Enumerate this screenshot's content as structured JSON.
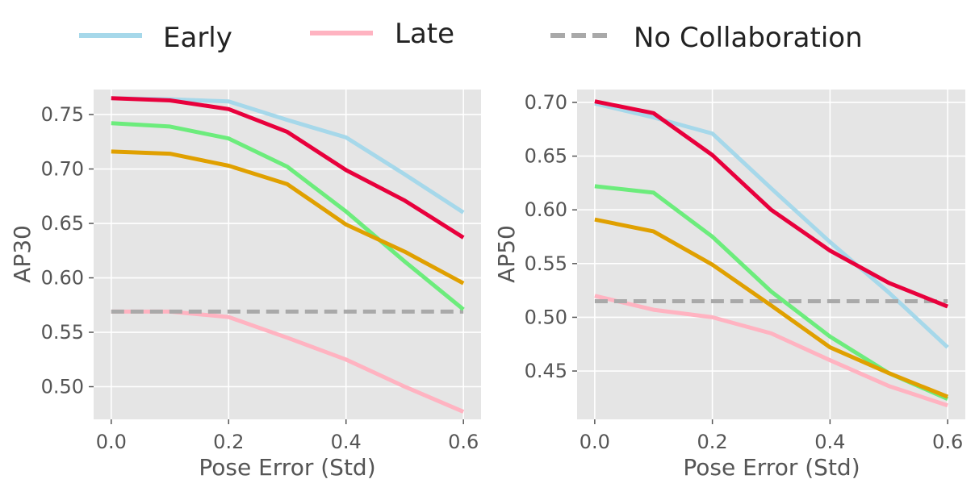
{
  "legend": {
    "items": [
      {
        "label": "Early",
        "color": "#a6d8ea",
        "style": "solid"
      },
      {
        "label": "Late",
        "color": "#ffb3c1",
        "style": "solid"
      },
      {
        "label": "No Collaboration",
        "color": "#a9a9a9",
        "style": "dashed"
      }
    ],
    "placement": "top"
  },
  "chart_data": [
    {
      "type": "line",
      "xlabel": "Pose Error (Std)",
      "ylabel": "AP30",
      "xlim": [
        -0.03,
        0.63
      ],
      "ylim": [
        0.47,
        0.773
      ],
      "xticks": [
        "0.0",
        "0.2",
        "0.4",
        "0.6"
      ],
      "xtick_values": [
        0.0,
        0.2,
        0.4,
        0.6
      ],
      "yticks": [
        "0.50",
        "0.55",
        "0.60",
        "0.65",
        "0.70",
        "0.75"
      ],
      "ytick_values": [
        0.5,
        0.55,
        0.6,
        0.65,
        0.7,
        0.75
      ],
      "grid": true,
      "x": [
        0.0,
        0.1,
        0.2,
        0.3,
        0.4,
        0.5,
        0.6
      ],
      "series": [
        {
          "name": "Early",
          "color": "#a6d8ea",
          "dashed": false,
          "values": [
            0.765,
            0.764,
            0.762,
            0.745,
            0.729,
            0.695,
            0.66
          ]
        },
        {
          "name": "Late",
          "color": "#ffb3c1",
          "dashed": false,
          "values": [
            0.569,
            0.569,
            0.564,
            0.545,
            0.525,
            0.5,
            0.477
          ]
        },
        {
          "name": "No Collaboration",
          "color": "#a9a9a9",
          "dashed": true,
          "values": [
            0.569,
            0.569,
            0.569,
            0.569,
            0.569,
            0.569,
            0.569
          ]
        },
        {
          "name": "",
          "color": "#6cec7c",
          "dashed": false,
          "values": [
            0.742,
            0.739,
            0.728,
            0.702,
            0.661,
            0.615,
            0.571
          ]
        },
        {
          "name": "",
          "color": "#e0a000",
          "dashed": false,
          "values": [
            0.716,
            0.714,
            0.703,
            0.686,
            0.649,
            0.624,
            0.595
          ]
        },
        {
          "name": "",
          "color": "#e8003c",
          "dashed": false,
          "values": [
            0.765,
            0.763,
            0.755,
            0.734,
            0.699,
            0.671,
            0.637
          ]
        }
      ]
    },
    {
      "type": "line",
      "xlabel": "Pose Error (Std)",
      "ylabel": "AP50",
      "xlim": [
        -0.03,
        0.63
      ],
      "ylim": [
        0.405,
        0.712
      ],
      "xticks": [
        "0.0",
        "0.2",
        "0.4",
        "0.6"
      ],
      "xtick_values": [
        0.0,
        0.2,
        0.4,
        0.6
      ],
      "yticks": [
        "0.45",
        "0.50",
        "0.55",
        "0.60",
        "0.65",
        "0.70"
      ],
      "ytick_values": [
        0.45,
        0.5,
        0.55,
        0.6,
        0.65,
        0.7
      ],
      "grid": true,
      "x": [
        0.0,
        0.1,
        0.2,
        0.3,
        0.4,
        0.5,
        0.6
      ],
      "series": [
        {
          "name": "Early",
          "color": "#a6d8ea",
          "dashed": false,
          "values": [
            0.699,
            0.686,
            0.671,
            0.62,
            0.57,
            0.523,
            0.472
          ]
        },
        {
          "name": "Late",
          "color": "#ffb3c1",
          "dashed": false,
          "values": [
            0.52,
            0.507,
            0.5,
            0.485,
            0.46,
            0.436,
            0.418
          ]
        },
        {
          "name": "No Collaboration",
          "color": "#a9a9a9",
          "dashed": true,
          "values": [
            0.515,
            0.515,
            0.515,
            0.515,
            0.515,
            0.515,
            0.515
          ]
        },
        {
          "name": "",
          "color": "#6cec7c",
          "dashed": false,
          "values": [
            0.622,
            0.616,
            0.575,
            0.524,
            0.482,
            0.448,
            0.424
          ]
        },
        {
          "name": "",
          "color": "#e0a000",
          "dashed": false,
          "values": [
            0.591,
            0.58,
            0.549,
            0.511,
            0.472,
            0.448,
            0.426
          ]
        },
        {
          "name": "",
          "color": "#e8003c",
          "dashed": false,
          "values": [
            0.701,
            0.69,
            0.651,
            0.6,
            0.562,
            0.532,
            0.51
          ]
        }
      ]
    }
  ]
}
